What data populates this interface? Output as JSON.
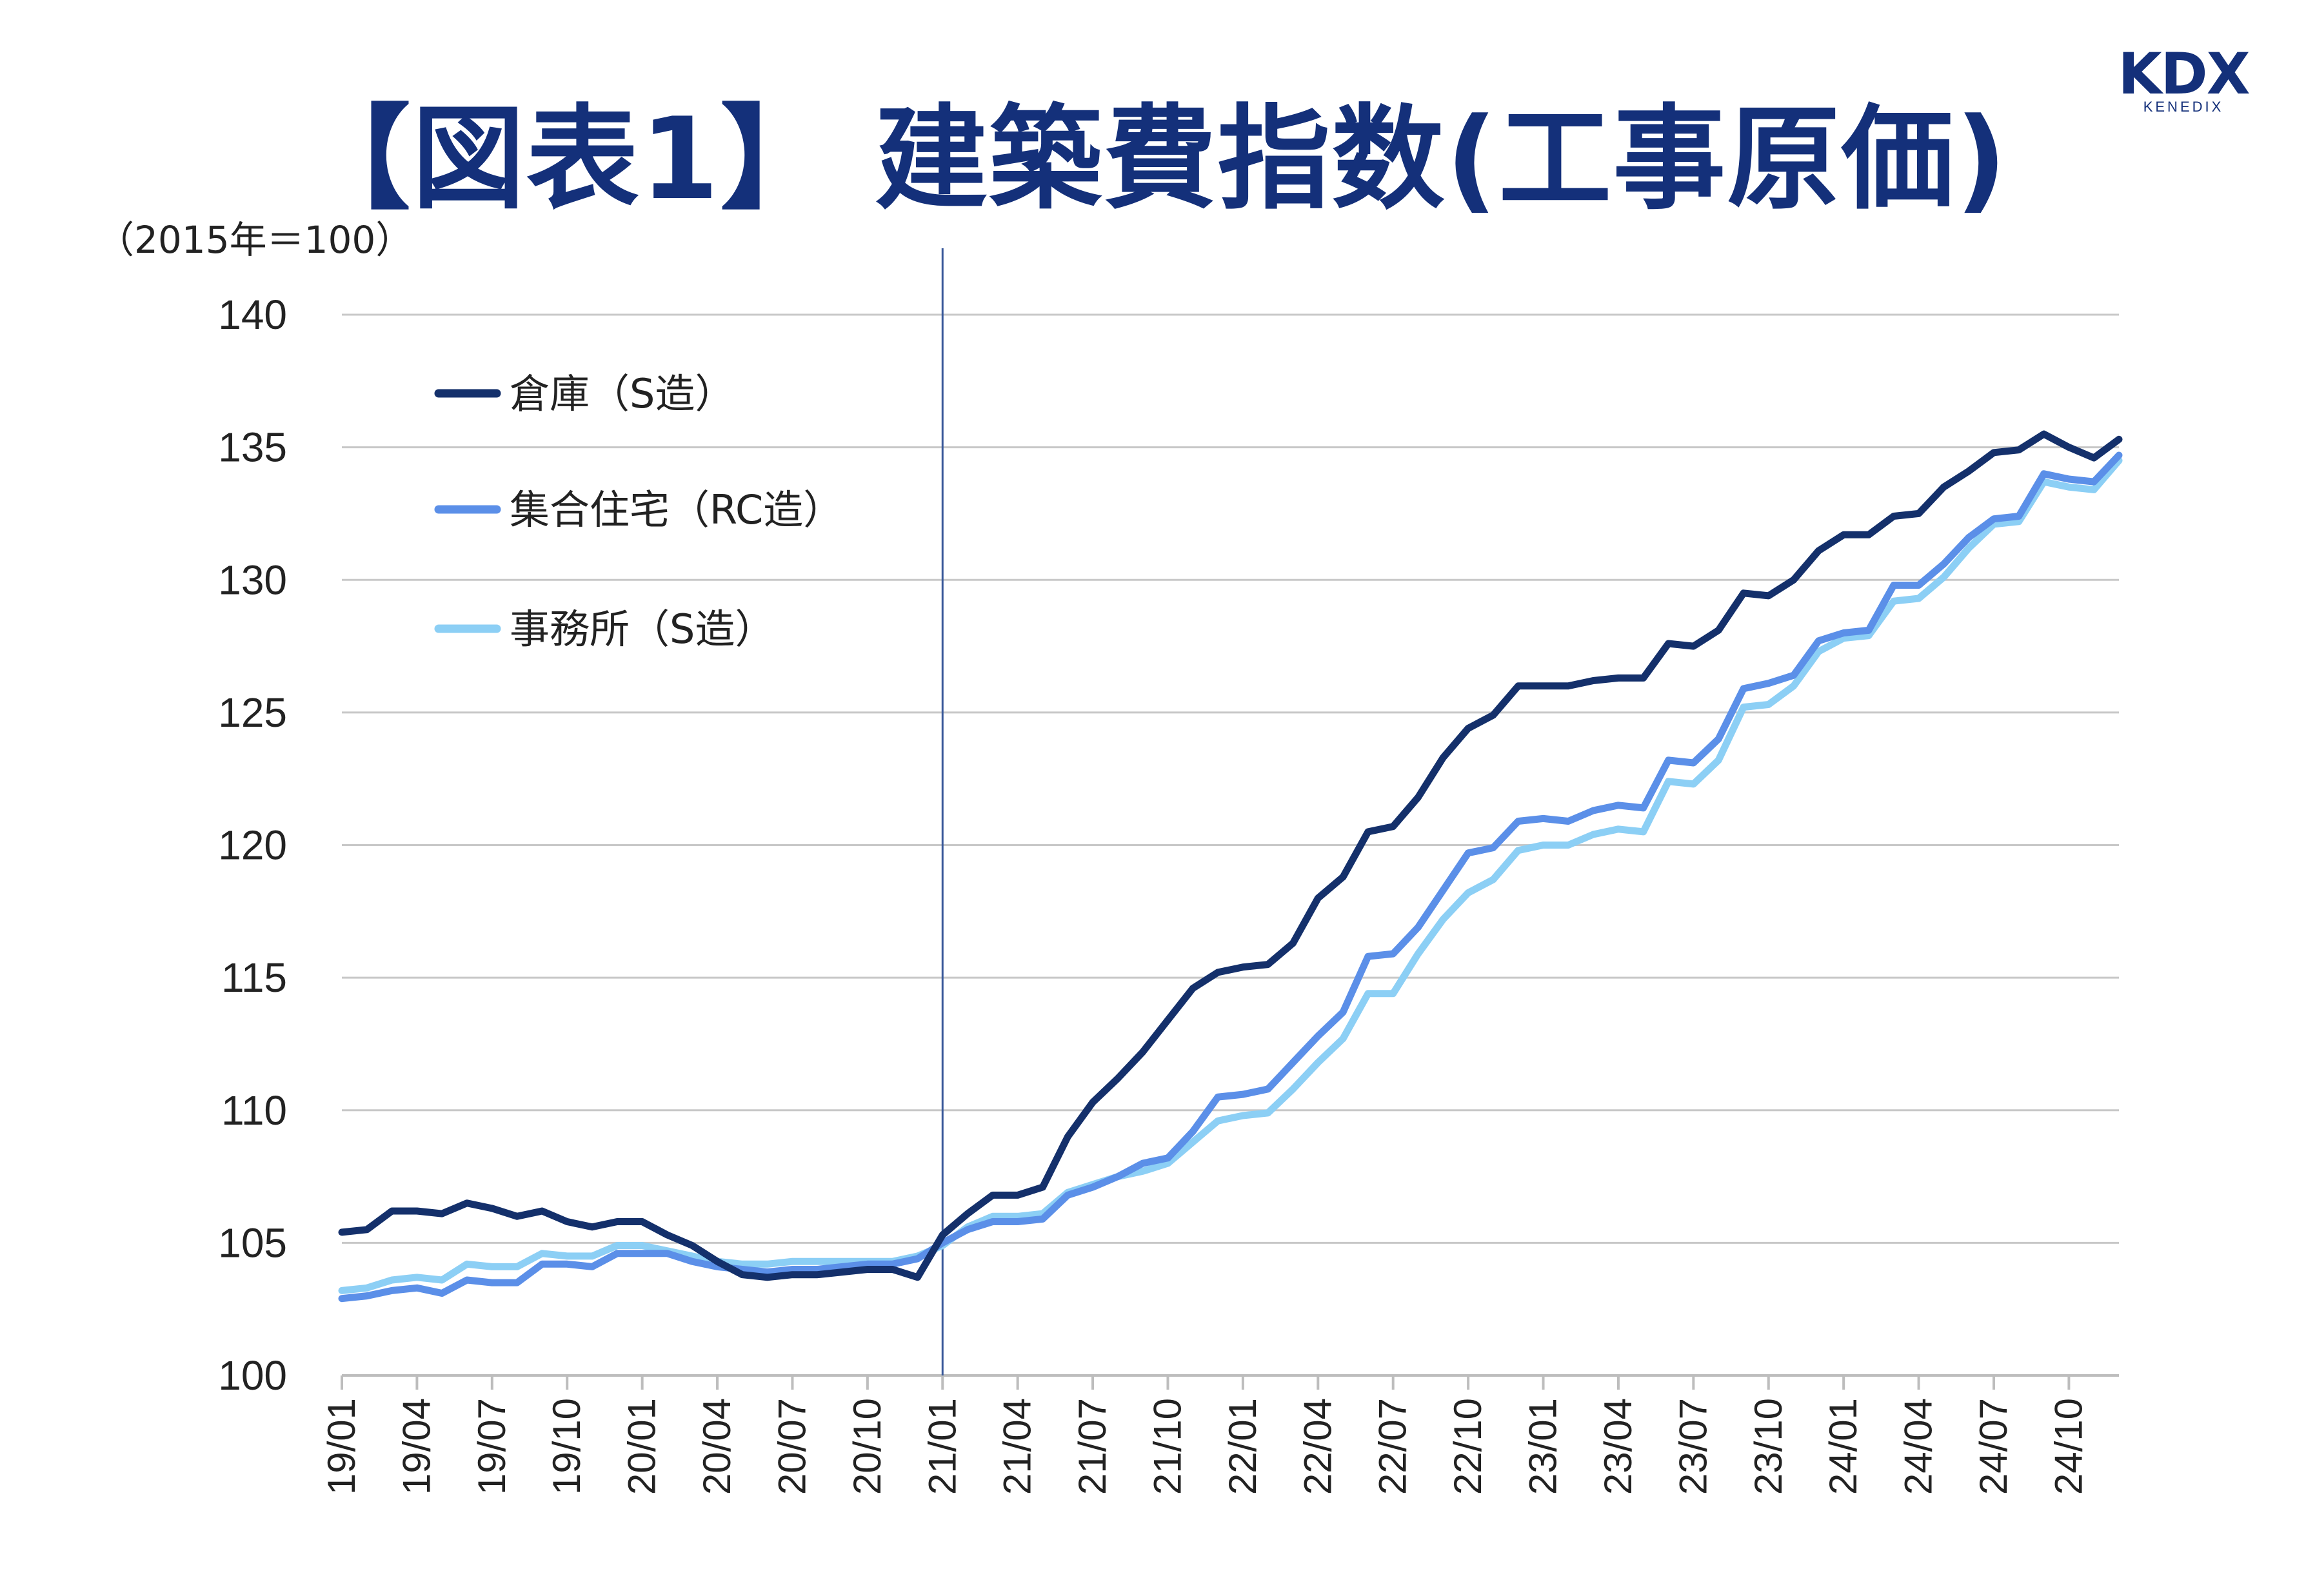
{
  "title": "【図表1】 建築費指数(工事原価)",
  "logo": {
    "main": "KDX",
    "sub": "KENEDIX"
  },
  "chart_data": {
    "type": "line",
    "unit_label": "（2015年＝100）",
    "ylim": [
      100,
      140
    ],
    "yticks": [
      100,
      105,
      110,
      115,
      120,
      125,
      130,
      135,
      140
    ],
    "grid": true,
    "legend_position": "top-left",
    "vertical_marker_at": "21/01",
    "x": [
      "19/01",
      "19/02",
      "19/03",
      "19/04",
      "19/05",
      "19/06",
      "19/07",
      "19/08",
      "19/09",
      "19/10",
      "19/11",
      "19/12",
      "20/01",
      "20/02",
      "20/03",
      "20/04",
      "20/05",
      "20/06",
      "20/07",
      "20/08",
      "20/09",
      "20/10",
      "20/11",
      "20/12",
      "21/01",
      "21/02",
      "21/03",
      "21/04",
      "21/05",
      "21/06",
      "21/07",
      "21/08",
      "21/09",
      "21/10",
      "21/11",
      "21/12",
      "22/01",
      "22/02",
      "22/03",
      "22/04",
      "22/05",
      "22/06",
      "22/07",
      "22/08",
      "22/09",
      "22/10",
      "22/11",
      "22/12",
      "23/01",
      "23/02",
      "23/03",
      "23/04",
      "23/05",
      "23/06",
      "23/07",
      "23/08",
      "23/09",
      "23/10",
      "23/11",
      "23/12",
      "24/01",
      "24/02",
      "24/03",
      "24/04",
      "24/05",
      "24/06",
      "24/07",
      "24/08",
      "24/09",
      "24/10",
      "24/11",
      "24/12"
    ],
    "x_tick_labels": [
      "19/01",
      "19/04",
      "19/07",
      "19/10",
      "20/01",
      "20/04",
      "20/07",
      "20/10",
      "21/01",
      "21/04",
      "21/07",
      "21/10",
      "22/01",
      "22/04",
      "22/07",
      "22/10",
      "23/01",
      "23/04",
      "23/07",
      "23/10",
      "24/01",
      "24/04",
      "24/07",
      "24/10"
    ],
    "series": [
      {
        "name": "倉庫（S造）",
        "color": "#14306b",
        "values": [
          105.4,
          105.5,
          106.2,
          106.2,
          106.1,
          106.5,
          106.3,
          106.0,
          106.2,
          105.8,
          105.6,
          105.8,
          105.8,
          105.3,
          104.9,
          104.3,
          103.8,
          103.7,
          103.8,
          103.8,
          103.9,
          104.0,
          104.0,
          103.7,
          105.3,
          106.1,
          106.8,
          106.8,
          107.1,
          109.0,
          110.3,
          111.2,
          112.2,
          113.4,
          114.6,
          115.2,
          115.4,
          115.5,
          116.3,
          118.0,
          118.8,
          120.5,
          120.7,
          121.8,
          123.3,
          124.4,
          124.9,
          126.0,
          126.0,
          126.0,
          126.2,
          126.3,
          126.3,
          127.6,
          127.5,
          128.1,
          129.5,
          129.4,
          130.0,
          131.1,
          131.7,
          131.7,
          132.4,
          132.5,
          133.5,
          134.1,
          134.8,
          134.9,
          135.5,
          135.0,
          134.6,
          135.3
        ]
      },
      {
        "name": "集合住宅（RC造）",
        "color": "#5b8fe8",
        "values": [
          102.9,
          103.0,
          103.2,
          103.3,
          103.1,
          103.6,
          103.5,
          103.5,
          104.2,
          104.2,
          104.1,
          104.6,
          104.6,
          104.6,
          104.3,
          104.1,
          104.0,
          103.9,
          104.0,
          104.0,
          104.1,
          104.2,
          104.2,
          104.4,
          105.0,
          105.5,
          105.8,
          105.8,
          105.9,
          106.8,
          107.1,
          107.5,
          108.0,
          108.2,
          109.2,
          110.5,
          110.6,
          110.8,
          111.8,
          112.8,
          113.7,
          115.8,
          115.9,
          116.9,
          118.3,
          119.7,
          119.9,
          120.9,
          121.0,
          120.9,
          121.3,
          121.5,
          121.4,
          123.2,
          123.1,
          124.0,
          125.9,
          126.1,
          126.4,
          127.7,
          128.0,
          128.1,
          129.8,
          129.8,
          130.6,
          131.6,
          132.3,
          132.4,
          134.0,
          133.8,
          133.7,
          134.7
        ]
      },
      {
        "name": "事務所（S造）",
        "color": "#8ccff5",
        "values": [
          103.2,
          103.3,
          103.6,
          103.7,
          103.6,
          104.2,
          104.1,
          104.1,
          104.6,
          104.5,
          104.5,
          104.9,
          104.9,
          104.7,
          104.5,
          104.3,
          104.2,
          104.2,
          104.3,
          104.3,
          104.3,
          104.3,
          104.3,
          104.5,
          104.9,
          105.6,
          106.0,
          106.0,
          106.1,
          106.9,
          107.2,
          107.5,
          107.7,
          108.0,
          108.8,
          109.6,
          109.8,
          109.9,
          110.8,
          111.8,
          112.7,
          114.4,
          114.4,
          115.9,
          117.2,
          118.2,
          118.7,
          119.8,
          120.0,
          120.0,
          120.4,
          120.6,
          120.5,
          122.4,
          122.3,
          123.2,
          125.2,
          125.3,
          126.0,
          127.3,
          127.8,
          127.9,
          129.2,
          129.3,
          130.1,
          131.2,
          132.1,
          132.2,
          133.7,
          133.5,
          133.4,
          134.5
        ]
      }
    ]
  }
}
